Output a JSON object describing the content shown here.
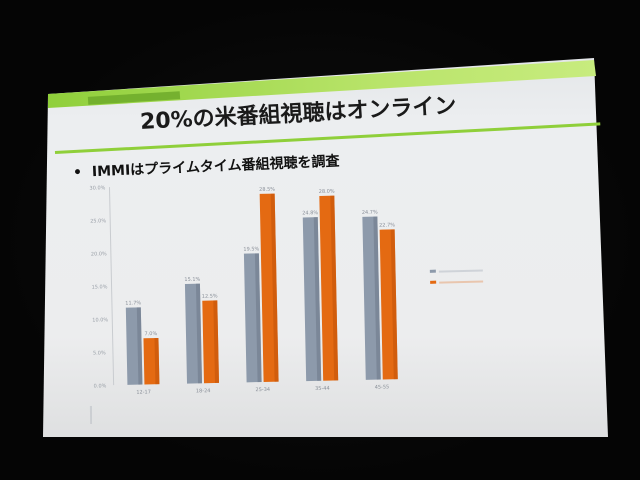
{
  "slide": {
    "title": "20%の米番組視聴はオンライン",
    "bullet": "IMMIはプライムタイム番組視聴を調査"
  },
  "colors": {
    "green": "#8fcf3a",
    "gray_series": "#8d9aab",
    "orange_series": "#e46a12",
    "slide_bg": "#ecedee"
  },
  "chart_data": {
    "type": "bar",
    "categories": [
      "12-17",
      "18-24",
      "25-34",
      "35-44",
      "45-55"
    ],
    "series": [
      {
        "values": [
          11.7,
          15.1,
          19.5,
          24.8,
          24.7
        ]
      },
      {
        "values": [
          7.0,
          12.5,
          28.5,
          28.0,
          22.7
        ]
      }
    ],
    "ylim": [
      0,
      30
    ],
    "yticks": [
      "0.0%",
      "5.0%",
      "10.0%",
      "15.0%",
      "20.0%",
      "25.0%",
      "30.0%"
    ],
    "value_labels": [
      [
        "11.7%",
        "15.1%",
        "19.5%",
        "24.8%",
        "24.7%"
      ],
      [
        "7.0%",
        "12.5%",
        "28.5%",
        "28.0%",
        "22.7%"
      ]
    ],
    "grid": false,
    "legend": "right"
  }
}
